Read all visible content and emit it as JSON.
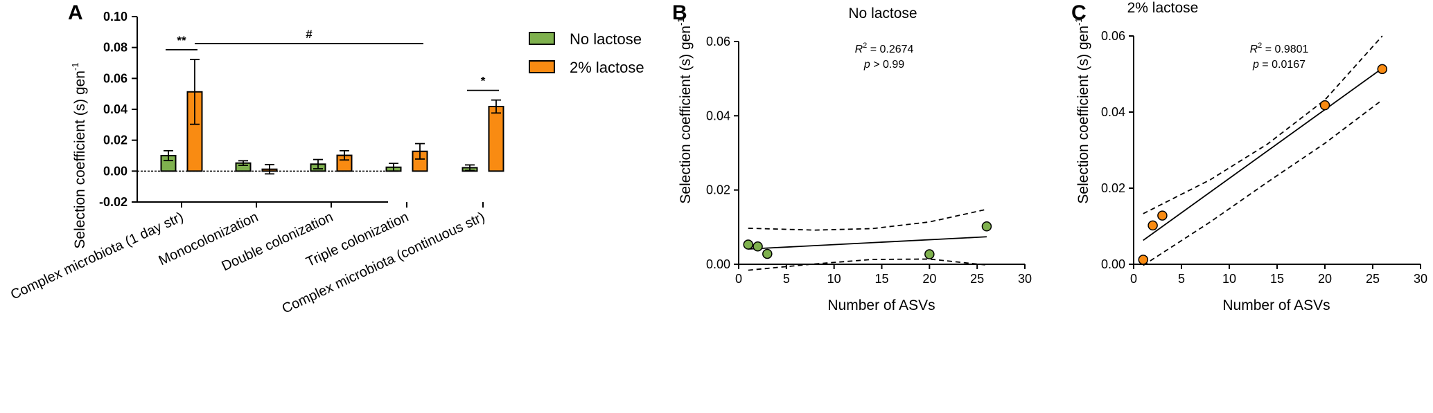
{
  "colors": {
    "no_lactose": "#7fb14e",
    "lactose": "#f98b12",
    "axis": "#000000"
  },
  "chart_data": [
    {
      "panel": "A",
      "type": "bar",
      "title": "",
      "ylabel": "Selection coefficient (s) gen",
      "ylabel_sup": "-1",
      "xlabel": "",
      "ylim": [
        -0.02,
        0.1
      ],
      "yticks": [
        -0.02,
        0.0,
        0.02,
        0.04,
        0.06,
        0.08,
        0.1
      ],
      "ytick_labels": [
        "-0.02",
        "0.00",
        "0.02",
        "0.04",
        "0.06",
        "0.08",
        "0.10"
      ],
      "categories": [
        "Complex microbiota (1 day str)",
        "Monocolonization",
        "Double colonization",
        "Triple colonization",
        "Complex microbiota (continuous str)"
      ],
      "series": [
        {
          "name": "No lactose",
          "values": [
            0.01,
            0.0052,
            0.0045,
            0.0025,
            0.0022
          ],
          "errors": [
            0.0032,
            0.0015,
            0.003,
            0.0025,
            0.0018
          ]
        },
        {
          "name": "2% lactose",
          "values": [
            0.0513,
            0.0012,
            0.0102,
            0.0128,
            0.0418
          ],
          "errors": [
            0.021,
            0.003,
            0.003,
            0.005,
            0.0042
          ]
        }
      ],
      "legend": {
        "position": "top-right",
        "entries": [
          "No lactose",
          "2% lactose"
        ]
      },
      "annotations": [
        {
          "text": "**",
          "type": "pair",
          "category": 0
        },
        {
          "text": "#",
          "type": "span",
          "from_category": 0,
          "to_category": 3
        },
        {
          "text": "*",
          "type": "pair",
          "category": 4
        }
      ]
    },
    {
      "panel": "B",
      "type": "scatter",
      "title": "No lactose",
      "xlabel": "Number of ASVs",
      "ylabel": "Selection coefficient (s) gen",
      "ylabel_sup": "-1",
      "xlim": [
        0,
        30
      ],
      "ylim": [
        0,
        0.06
      ],
      "xticks": [
        0,
        5,
        10,
        15,
        20,
        25,
        30
      ],
      "xtick_labels": [
        "0",
        "5",
        "10",
        "15",
        "20",
        "25",
        "30"
      ],
      "yticks": [
        0.0,
        0.02,
        0.04,
        0.06
      ],
      "ytick_labels": [
        "0.00",
        "0.02",
        "0.04",
        "0.06"
      ],
      "x": [
        1,
        2,
        3,
        20,
        26
      ],
      "y": [
        0.0053,
        0.0048,
        0.0028,
        0.0027,
        0.0102
      ],
      "fit": {
        "x": [
          1,
          26
        ],
        "y": [
          0.0041,
          0.0074
        ]
      },
      "ci_upper": {
        "x": [
          1,
          8,
          14,
          20,
          26
        ],
        "y": [
          0.0097,
          0.0092,
          0.0096,
          0.0114,
          0.0148
        ]
      },
      "ci_lower": {
        "x": [
          1,
          8,
          14,
          20,
          26
        ],
        "y": [
          -0.0016,
          0.0001,
          0.0013,
          0.0014,
          -0.0002
        ]
      },
      "r2_label": "R",
      "r2_sup": "2",
      "r2_value": " = 0.2674",
      "p_label": "p",
      "p_value": " > 0.99"
    },
    {
      "panel": "C",
      "type": "scatter",
      "title": "2% lactose",
      "xlabel": "Number of ASVs",
      "ylabel": "Selection coefficient (s) gen",
      "ylabel_sup": "-1",
      "xlim": [
        0,
        30
      ],
      "ylim": [
        0,
        0.06
      ],
      "xticks": [
        0,
        5,
        10,
        15,
        20,
        25,
        30
      ],
      "xtick_labels": [
        "0",
        "5",
        "10",
        "15",
        "20",
        "25",
        "30"
      ],
      "yticks": [
        0.0,
        0.02,
        0.04,
        0.06
      ],
      "ytick_labels": [
        "0.00",
        "0.02",
        "0.04",
        "0.06"
      ],
      "x": [
        1,
        2,
        3,
        20,
        26
      ],
      "y": [
        0.0012,
        0.0102,
        0.0128,
        0.0418,
        0.0513
      ],
      "fit": {
        "x": [
          1,
          26
        ],
        "y": [
          0.0063,
          0.0515
        ]
      },
      "ci_upper": {
        "x": [
          1,
          8,
          14,
          20,
          26
        ],
        "y": [
          0.0133,
          0.0222,
          0.0316,
          0.0432,
          0.06
        ]
      },
      "ci_lower": {
        "x": [
          1,
          8,
          14,
          20,
          26
        ],
        "y": [
          -0.0003,
          0.0111,
          0.0216,
          0.0318,
          0.0432
        ]
      },
      "r2_label": "R",
      "r2_sup": "2",
      "r2_value": " = 0.9801",
      "p_label": "p",
      "p_value": " = 0.0167"
    }
  ]
}
